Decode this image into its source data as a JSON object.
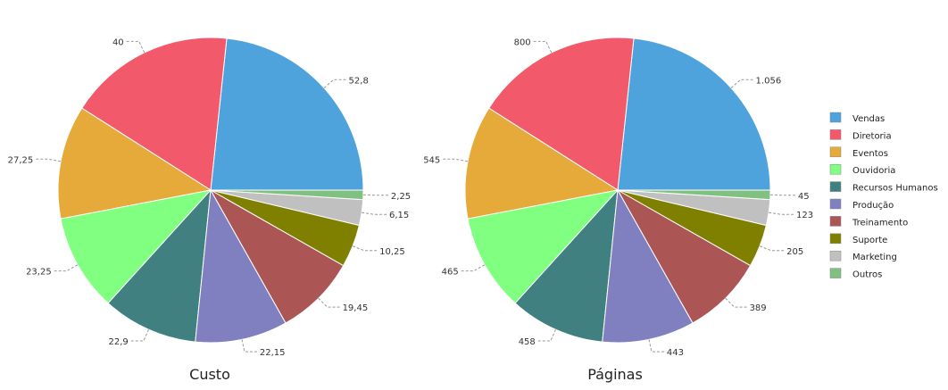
{
  "categories": [
    "Vendas",
    "Diretoria",
    "Eventos",
    "Ouvidoria",
    "Recursos Humanos",
    "Produção",
    "Treinamento",
    "Suporte",
    "Marketing",
    "Outros"
  ],
  "colors": [
    "#4fa3dc",
    "#f2596b",
    "#e6aa3a",
    "#80ff80",
    "#408080",
    "#8080c0",
    "#ab5555",
    "#808000",
    "#c0c0c0",
    "#80c080"
  ],
  "chart_data": [
    {
      "type": "pie",
      "title": "Custo",
      "categories": [
        "Vendas",
        "Diretoria",
        "Eventos",
        "Ouvidoria",
        "Recursos Humanos",
        "Produção",
        "Treinamento",
        "Suporte",
        "Marketing",
        "Outros"
      ],
      "values": [
        52.8,
        40,
        27.25,
        23.25,
        22.9,
        22.15,
        19.45,
        10.25,
        6.15,
        2.25
      ],
      "labels": [
        "52,8",
        "40",
        "27,25",
        "23,25",
        "22,9",
        "22,15",
        "19,45",
        "10,25",
        "6,15",
        "2,25"
      ],
      "legend": "none"
    },
    {
      "type": "pie",
      "title": "Páginas",
      "categories": [
        "Vendas",
        "Diretoria",
        "Eventos",
        "Ouvidoria",
        "Recursos Humanos",
        "Produção",
        "Treinamento",
        "Suporte",
        "Marketing",
        "Outros"
      ],
      "values": [
        1056,
        800,
        545,
        465,
        458,
        443,
        389,
        205,
        123,
        45
      ],
      "labels": [
        "1.056",
        "800",
        "545",
        "465",
        "458",
        "443",
        "389",
        "205",
        "123",
        "45"
      ],
      "legend": "right"
    }
  ]
}
